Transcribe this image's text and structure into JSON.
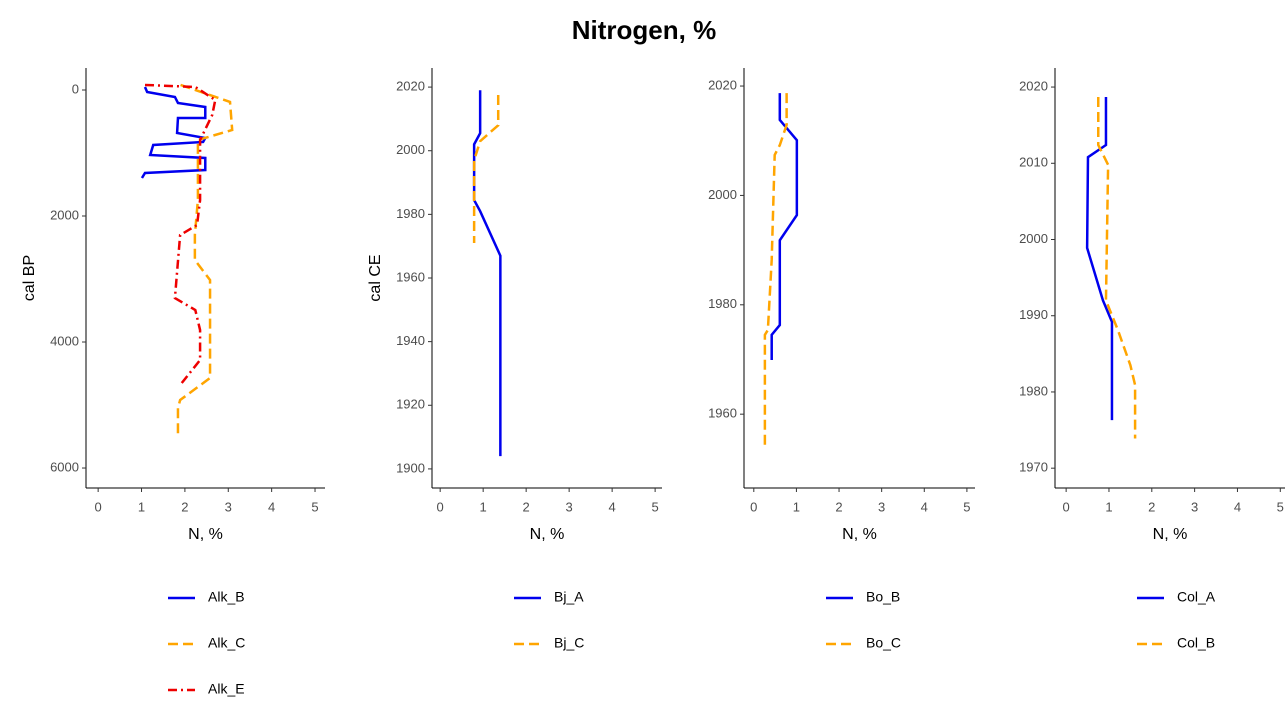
{
  "title": "Nitrogen, %",
  "chart_data": [
    {
      "type": "line",
      "x_label": "N, %",
      "y_label": "cal BP",
      "xlim": [
        -0.28,
        5.23
      ],
      "xticks": [
        0,
        1,
        2,
        3,
        4,
        5
      ],
      "ylim": [
        6317,
        -349
      ],
      "yticks": [
        0,
        2000,
        4000,
        6000
      ],
      "series": [
        {
          "name": "Alk_B",
          "color": "#0000ee",
          "linetype": "solid",
          "x": [
            1.08,
            1.13,
            1.77,
            1.84,
            2.47,
            2.47,
            1.84,
            1.82,
            2.47,
            2.42,
            1.27,
            1.2,
            2.47,
            2.47,
            1.08,
            1.01
          ],
          "y": [
            -48,
            32,
            111,
            206,
            270,
            444,
            444,
            683,
            762,
            825,
            873,
            1032,
            1079,
            1270,
            1317,
            1397
          ]
        },
        {
          "name": "Alk_C",
          "color": "#ffa500",
          "linetype": "dashed",
          "x": [
            1.9,
            3.04,
            3.09,
            2.3,
            2.3,
            2.23,
            2.23,
            2.58,
            2.58,
            1.89,
            1.84,
            1.84
          ],
          "y": [
            -80,
            190,
            635,
            794,
            1746,
            2300,
            2698,
            3016,
            4571,
            4921,
            5048,
            5524
          ]
        },
        {
          "name": "Alk_E",
          "color": "#ee0000",
          "linetype": "dotdash",
          "x": [
            1.08,
            2.24,
            2.7,
            2.63,
            2.35,
            2.35,
            2.28,
            1.89,
            1.77,
            2.24,
            2.35,
            2.35,
            1.89
          ],
          "y": [
            -80,
            -48,
            159,
            397,
            794,
            1746,
            2143,
            2302,
            3302,
            3492,
            3810,
            4286,
            4683
          ]
        }
      ]
    },
    {
      "type": "line",
      "x_label": "N, %",
      "y_label": "cal CE",
      "xlim": [
        -0.19,
        5.16
      ],
      "xticks": [
        0,
        1,
        2,
        3,
        4,
        5
      ],
      "ylim": [
        1894,
        2026
      ],
      "yticks": [
        1900,
        1920,
        1940,
        1960,
        1980,
        2000,
        2020
      ],
      "series": [
        {
          "name": "Bj_A",
          "color": "#0000ee",
          "linetype": "solid",
          "x": [
            0.93,
            0.93,
            0.79,
            0.79,
            0.93,
            1.4,
            1.4
          ],
          "y": [
            2019,
            2005.5,
            2002,
            1984.5,
            1981,
            1967,
            1904
          ]
        },
        {
          "name": "Bj_C",
          "color": "#ffa500",
          "linetype": "dashed",
          "x": [
            1.35,
            1.35,
            0.93,
            0.79,
            0.79
          ],
          "y": [
            2017.5,
            2008,
            2003,
            1997,
            1971
          ]
        }
      ]
    },
    {
      "type": "line",
      "x_label": "N, %",
      "xlim": [
        -0.23,
        5.19
      ],
      "xticks": [
        0,
        1,
        2,
        3,
        4,
        5
      ],
      "ylim": [
        1946.5,
        2023.3
      ],
      "yticks": [
        1960,
        1980,
        2000,
        2020
      ],
      "series": [
        {
          "name": "Bo_B",
          "color": "#0000ee",
          "linetype": "solid",
          "x": [
            0.61,
            0.61,
            1.01,
            1.01,
            0.61,
            0.61,
            0.42,
            0.42
          ],
          "y": [
            2018.7,
            2013.8,
            2010.1,
            1996.4,
            1991.8,
            1976.3,
            1974.5,
            1969.9
          ]
        },
        {
          "name": "Bo_C",
          "color": "#ffa500",
          "linetype": "dashed",
          "x": [
            0.77,
            0.77,
            0.61,
            0.49,
            0.42,
            0.33,
            0.26,
            0.26
          ],
          "y": [
            2018.7,
            2012.9,
            2009.2,
            2007.4,
            1988.2,
            1975.4,
            1974.5,
            1954.3
          ]
        }
      ]
    },
    {
      "type": "line",
      "x_label": "N, %",
      "xlim": [
        -0.26,
        5.11
      ],
      "xticks": [
        0,
        1,
        2,
        3,
        4,
        5
      ],
      "ylim": [
        1967.4,
        2022.5
      ],
      "yticks": [
        1970,
        1980,
        1990,
        2000,
        2010,
        2020
      ],
      "series": [
        {
          "name": "Col_A",
          "color": "#0000ee",
          "linetype": "solid",
          "x": [
            0.93,
            0.93,
            0.93,
            0.51,
            0.49,
            0.86,
            1.07,
            1.07
          ],
          "y": [
            2018.7,
            2015,
            2012.4,
            2010.8,
            1998.9,
            1992,
            1989.2,
            1976.3
          ]
        },
        {
          "name": "Col_B",
          "color": "#ffa500",
          "linetype": "dashed",
          "x": [
            0.75,
            0.75,
            0.98,
            0.93,
            1.21,
            1.5,
            1.61,
            1.61
          ],
          "y": [
            2018.7,
            2012.4,
            2009.8,
            1992,
            1988.1,
            1983.5,
            1980.9,
            1973.9
          ]
        }
      ]
    }
  ]
}
